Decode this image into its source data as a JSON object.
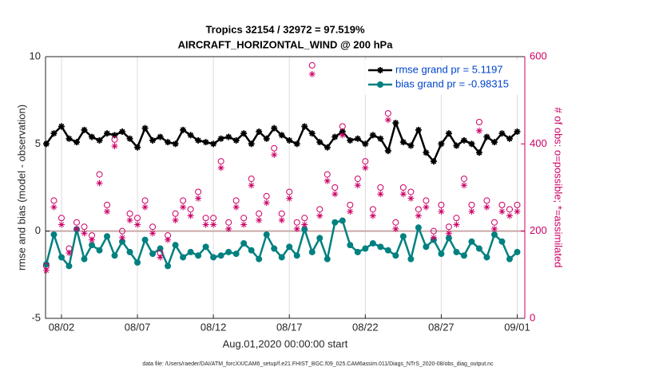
{
  "chart_data": {
    "type": "line",
    "title": [
      "Tropics 32154 / 32972 = 97.519%",
      "AIRCRAFT_HORIZONTAL_WIND @ 200 hPa"
    ],
    "xlabel": "Aug.01,2020 00:00:00 start",
    "ylabel": "rmse and bias (model - observation)",
    "y2label": "# of obs: o=possible; *=assimilated",
    "footnote": "data file: /Users/raeder/DAI/ATM_forcXX/CAM6_setup/f.e21.FHIST_BGC.f09_025.CAM6assim.011/Diags_NTrS_2020-08/obs_diag_output.nc",
    "xlim": [
      -0.05,
      31.5
    ],
    "xticks": [
      {
        "value": 1,
        "label": "08/02"
      },
      {
        "value": 6,
        "label": "08/07"
      },
      {
        "value": 11,
        "label": "08/12"
      },
      {
        "value": 16,
        "label": "08/17"
      },
      {
        "value": 21,
        "label": "08/22"
      },
      {
        "value": 26,
        "label": "08/27"
      },
      {
        "value": 31,
        "label": "09/01"
      }
    ],
    "ylim": [
      -5,
      10
    ],
    "yticks": [
      -5,
      0,
      5,
      10
    ],
    "y2lim": [
      0,
      600
    ],
    "y2ticks": [
      0,
      200,
      400,
      600
    ],
    "grid": "x",
    "legend": "upper right",
    "x": [
      0,
      0.5,
      1,
      1.5,
      2,
      2.5,
      3,
      3.5,
      4,
      4.5,
      5,
      5.5,
      6,
      6.5,
      7,
      7.5,
      8,
      8.5,
      9,
      9.5,
      10,
      10.5,
      11,
      11.5,
      12,
      12.5,
      13,
      13.5,
      14,
      14.5,
      15,
      15.5,
      16,
      16.5,
      17,
      17.5,
      18,
      18.5,
      19,
      19.5,
      20,
      20.5,
      21,
      21.5,
      22,
      22.5,
      23,
      23.5,
      24,
      24.5,
      25,
      25.5,
      26,
      26.5,
      27,
      27.5,
      28,
      28.5,
      29,
      29.5,
      30,
      30.5,
      31
    ],
    "series": [
      {
        "name": "rmse grand pr = 5.1197",
        "color": "#000000",
        "marker": "asterisk",
        "line": true,
        "values": [
          5.0,
          5.6,
          6.0,
          5.3,
          5.1,
          5.8,
          5.4,
          5.2,
          5.6,
          5.5,
          5.7,
          5.3,
          4.8,
          5.9,
          5.2,
          5.4,
          5.1,
          5.0,
          5.8,
          5.5,
          5.2,
          5.1,
          5.0,
          5.3,
          5.4,
          5.2,
          5.6,
          5.0,
          5.7,
          5.3,
          5.9,
          5.5,
          5.2,
          5.0,
          6.0,
          5.6,
          5.1,
          4.8,
          5.4,
          5.7,
          5.2,
          5.3,
          5.0,
          5.5,
          5.3,
          4.6,
          6.2,
          5.1,
          4.9,
          5.8,
          4.5,
          4.0,
          5.0,
          5.6,
          4.9,
          5.2,
          5.0,
          4.5,
          5.4,
          5.1,
          5.6,
          5.3,
          5.7
        ]
      },
      {
        "name": "bias grand pr = -0.98315",
        "color": "#008080",
        "marker": "circle-filled",
        "line": true,
        "values": [
          -1.9,
          -0.2,
          -1.5,
          -2.0,
          0.1,
          -1.6,
          -0.8,
          -1.1,
          -0.3,
          -1.4,
          -0.6,
          -1.2,
          -1.8,
          -0.5,
          -1.3,
          -1.0,
          -2.0,
          -0.8,
          -1.5,
          -1.2,
          -1.4,
          -0.9,
          -1.5,
          -1.4,
          -1.2,
          -1.3,
          -0.7,
          -1.1,
          -1.6,
          -0.2,
          -1.0,
          -1.5,
          -0.9,
          -1.4,
          0.1,
          -1.2,
          -0.4,
          -1.6,
          0.5,
          0.6,
          -0.8,
          -1.2,
          -1.0,
          -0.7,
          -0.9,
          -1.1,
          -1.4,
          -0.3,
          -1.6,
          0.2,
          -0.9,
          -0.5,
          -1.3,
          -0.4,
          -1.2,
          -1.4,
          -0.6,
          -1.0,
          -1.5,
          -0.2,
          -0.6,
          -1.6,
          -1.2
        ]
      },
      {
        "color": "#cc0066",
        "marker": "circle",
        "line": false,
        "axis": "y2",
        "values": [
          120,
          270,
          230,
          160,
          220,
          210,
          190,
          330,
          260,
          410,
          200,
          240,
          230,
          270,
          210,
          150,
          190,
          240,
          270,
          250,
          290,
          230,
          230,
          360,
          220,
          270,
          230,
          320,
          240,
          280,
          390,
          240,
          290,
          220,
          230,
          580,
          250,
          330,
          300,
          440,
          260,
          320,
          360,
          250,
          300,
          470,
          220,
          300,
          290,
          250,
          270,
          200,
          260,
          210,
          230,
          320,
          260,
          450,
          270,
          220,
          260,
          250,
          260
        ]
      },
      {
        "color": "#cc0066",
        "marker": "asterisk",
        "line": false,
        "axis": "y2",
        "values": [
          110,
          255,
          215,
          150,
          205,
          195,
          180,
          310,
          245,
          395,
          185,
          225,
          215,
          255,
          195,
          140,
          180,
          225,
          255,
          235,
          275,
          215,
          215,
          345,
          205,
          255,
          215,
          305,
          225,
          265,
          375,
          225,
          275,
          205,
          215,
          560,
          235,
          315,
          285,
          420,
          245,
          305,
          345,
          235,
          285,
          455,
          205,
          285,
          275,
          235,
          255,
          185,
          245,
          195,
          215,
          305,
          245,
          430,
          255,
          205,
          245,
          235,
          245
        ]
      }
    ]
  }
}
